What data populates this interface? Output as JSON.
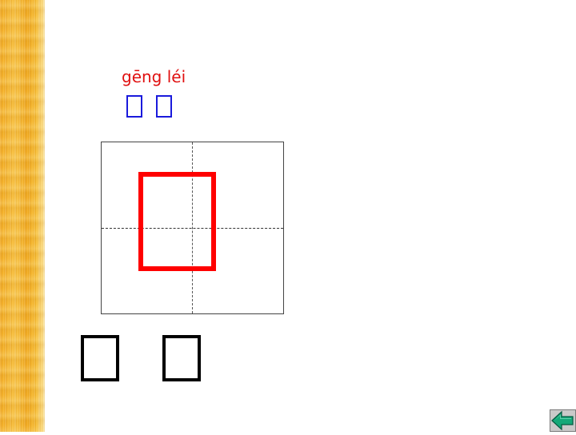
{
  "lesson": {
    "pinyin": "gēng léi",
    "word_glyphs": [
      "missing-glyph",
      "missing-glyph"
    ],
    "practice_glyph": "missing-glyph",
    "bottom_glyphs": [
      "missing-glyph",
      "missing-glyph"
    ]
  },
  "nav": {
    "back_icon": "back-arrow-icon"
  },
  "colors": {
    "pinyin": "#e01010",
    "word_glyph_border": "#1a1adc",
    "practice_glyph_border": "#ff0000",
    "bottom_glyph_border": "#000000",
    "side_strip": "#f3a81c",
    "back_button": "#14a878"
  }
}
